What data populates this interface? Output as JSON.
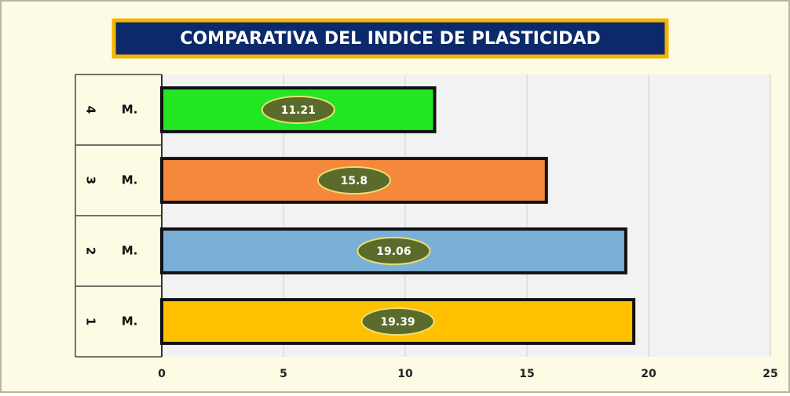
{
  "chart_data": {
    "type": "bar",
    "orientation": "horizontal",
    "title": "COMPARATIVA DEL INDICE DE PLASTICIDAD",
    "groups": [
      "1",
      "2",
      "3",
      "4"
    ],
    "categories": [
      "M.",
      "M.",
      "M.",
      "M."
    ],
    "values": [
      19.39,
      19.06,
      15.8,
      11.21
    ],
    "colors": [
      "#ffc000",
      "#7ab0d8",
      "#f5883a",
      "#22e622"
    ],
    "xlim": [
      0,
      25
    ],
    "xticks": [
      0,
      5,
      10,
      15,
      20,
      25
    ],
    "grid": true
  }
}
